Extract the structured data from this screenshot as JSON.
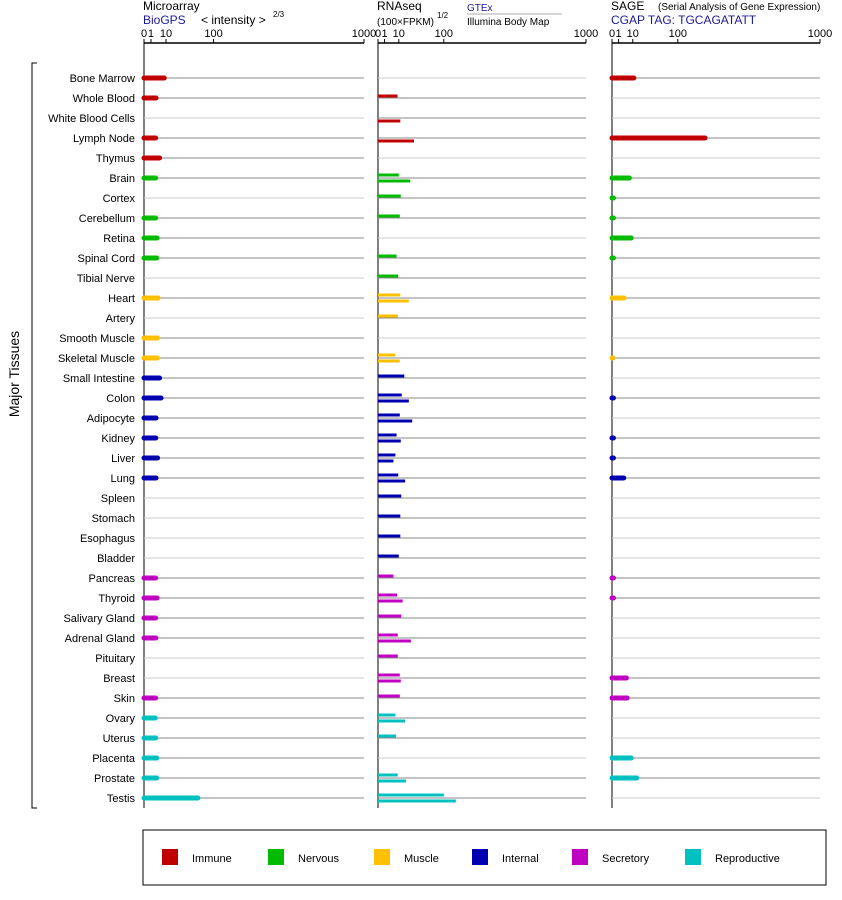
{
  "chart_data": {
    "type": "bar",
    "y_axis_title": "Major Tissues",
    "scale": {
      "ticks": [
        0,
        1,
        10,
        100,
        1000
      ],
      "tick_labels": [
        "0",
        "1",
        "10",
        "100",
        "1000"
      ],
      "max": 1000
    },
    "headers": {
      "microarray": {
        "title": "Microarray",
        "source": "BioGPS",
        "units": "< intensity >",
        "exponent": "2/3"
      },
      "rnaseq": {
        "title": "RNAseq",
        "units": "(100×FPKM)",
        "exponent": "1/2",
        "source1": "GTEx",
        "source2": "Illumina Body Map"
      },
      "sage": {
        "title": "SAGE",
        "subtitle": "(Serial Analysis of Gene Expression)",
        "tag": "CGAP TAG: TGCAGATATT"
      }
    },
    "categories": {
      "immune": {
        "label": "Immune",
        "color": "#c00000"
      },
      "nervous": {
        "label": "Nervous",
        "color": "#00bb00"
      },
      "muscle": {
        "label": "Muscle",
        "color": "#ffc000"
      },
      "internal": {
        "label": "Internal",
        "color": "#0000b0"
      },
      "secretory": {
        "label": "Secretory",
        "color": "#c000c0"
      },
      "reproductive": {
        "label": "Reproductive",
        "color": "#00c0c0"
      }
    },
    "legend_order": [
      "immune",
      "nervous",
      "muscle",
      "internal",
      "secretory",
      "reproductive"
    ],
    "tissues": [
      {
        "name": "Bone Marrow",
        "cat": "immune",
        "microarray": 8.5,
        "gtex": null,
        "ibm": null,
        "sage": 11
      },
      {
        "name": "Whole Blood",
        "cat": "immune",
        "microarray": 3,
        "gtex": 8.8,
        "ibm": null,
        "sage": null
      },
      {
        "name": "White Blood Cells",
        "cat": "immune",
        "microarray": null,
        "gtex": null,
        "ibm": 11.5,
        "sage": null
      },
      {
        "name": "Lymph Node",
        "cat": "immune",
        "microarray": 2.8,
        "gtex": null,
        "ibm": 30,
        "sage": 200
      },
      {
        "name": "Thymus",
        "cat": "immune",
        "microarray": 5,
        "gtex": null,
        "ibm": null,
        "sage": null
      },
      {
        "name": "Brain",
        "cat": "nervous",
        "microarray": 2.8,
        "gtex": 10,
        "ibm": 24,
        "sage": 7
      },
      {
        "name": "Cortex",
        "cat": "nervous",
        "microarray": null,
        "gtex": 12,
        "ibm": null,
        "sage": 0.05
      },
      {
        "name": "Cerebellum",
        "cat": "nervous",
        "microarray": 2.8,
        "gtex": 11,
        "ibm": null,
        "sage": 0.05
      },
      {
        "name": "Retina",
        "cat": "nervous",
        "microarray": 3.5,
        "gtex": null,
        "ibm": null,
        "sage": 8.5
      },
      {
        "name": "Spinal Cord",
        "cat": "nervous",
        "microarray": 3.3,
        "gtex": 8,
        "ibm": null,
        "sage": 0.05
      },
      {
        "name": "Tibial Nerve",
        "cat": "nervous",
        "microarray": null,
        "gtex": 9.5,
        "ibm": null,
        "sage": null
      },
      {
        "name": "Heart",
        "cat": "muscle",
        "microarray": 4,
        "gtex": 11.5,
        "ibm": 22,
        "sage": 3.4
      },
      {
        "name": "Artery",
        "cat": "muscle",
        "microarray": null,
        "gtex": 9.2,
        "ibm": null,
        "sage": null
      },
      {
        "name": "Smooth Muscle",
        "cat": "muscle",
        "microarray": 3.7,
        "gtex": null,
        "ibm": null,
        "sage": null
      },
      {
        "name": "Skeletal Muscle",
        "cat": "muscle",
        "microarray": 3.6,
        "gtex": 7,
        "ibm": 11,
        "sage": 0.02
      },
      {
        "name": "Small Intestine",
        "cat": "internal",
        "microarray": 5,
        "gtex": 16,
        "ibm": null,
        "sage": null
      },
      {
        "name": "Colon",
        "cat": "internal",
        "microarray": 6,
        "gtex": 13,
        "ibm": 22,
        "sage": 0.05
      },
      {
        "name": "Adipocyte",
        "cat": "internal",
        "microarray": 3,
        "gtex": 11,
        "ibm": 27,
        "sage": null
      },
      {
        "name": "Kidney",
        "cat": "internal",
        "microarray": 2.9,
        "gtex": 8,
        "ibm": 12,
        "sage": 0.05
      },
      {
        "name": "Liver",
        "cat": "internal",
        "microarray": 3.8,
        "gtex": 7,
        "ibm": 5.5,
        "sage": 0.05
      },
      {
        "name": "Lung",
        "cat": "internal",
        "microarray": 3,
        "gtex": 9.5,
        "ibm": 17,
        "sage": 3.2
      },
      {
        "name": "Spleen",
        "cat": "internal",
        "microarray": null,
        "gtex": 12.5,
        "ibm": null,
        "sage": null
      },
      {
        "name": "Stomach",
        "cat": "internal",
        "microarray": null,
        "gtex": 11.5,
        "ibm": null,
        "sage": null
      },
      {
        "name": "Esophagus",
        "cat": "internal",
        "microarray": null,
        "gtex": 11.5,
        "ibm": null,
        "sage": null
      },
      {
        "name": "Bladder",
        "cat": "internal",
        "microarray": null,
        "gtex": 10,
        "ibm": null,
        "sage": null
      },
      {
        "name": "Pancreas",
        "cat": "secretory",
        "microarray": 2.8,
        "gtex": 5.5,
        "ibm": null,
        "sage": 0.05
      },
      {
        "name": "Thyroid",
        "cat": "secretory",
        "microarray": 3.5,
        "gtex": 8.5,
        "ibm": 14,
        "sage": 0.05
      },
      {
        "name": "Salivary Gland",
        "cat": "secretory",
        "microarray": 2.8,
        "gtex": 12.5,
        "ibm": null,
        "sage": null
      },
      {
        "name": "Adrenal Gland",
        "cat": "secretory",
        "microarray": 2.9,
        "gtex": 9,
        "ibm": 25,
        "sage": null
      },
      {
        "name": "Pituitary",
        "cat": "secretory",
        "microarray": null,
        "gtex": 9,
        "ibm": null,
        "sage": null
      },
      {
        "name": "Breast",
        "cat": "secretory",
        "microarray": null,
        "gtex": 11,
        "ibm": 12,
        "sage": 4.8
      },
      {
        "name": "Skin",
        "cat": "secretory",
        "microarray": 2.8,
        "gtex": 11,
        "ibm": null,
        "sage": 5.3
      },
      {
        "name": "Ovary",
        "cat": "reproductive",
        "microarray": 2.6,
        "gtex": 7,
        "ibm": 17,
        "sage": null
      },
      {
        "name": "Uterus",
        "cat": "reproductive",
        "microarray": 2.8,
        "gtex": 7.5,
        "ibm": null,
        "sage": null
      },
      {
        "name": "Placenta",
        "cat": "reproductive",
        "microarray": 3.3,
        "gtex": null,
        "ibm": null,
        "sage": 8.5
      },
      {
        "name": "Prostate",
        "cat": "reproductive",
        "microarray": 3.3,
        "gtex": 9,
        "ibm": 18,
        "sage": 14
      },
      {
        "name": "Testis",
        "cat": "reproductive",
        "microarray": 60,
        "gtex": 100,
        "ibm": 140,
        "sage": null
      }
    ]
  }
}
